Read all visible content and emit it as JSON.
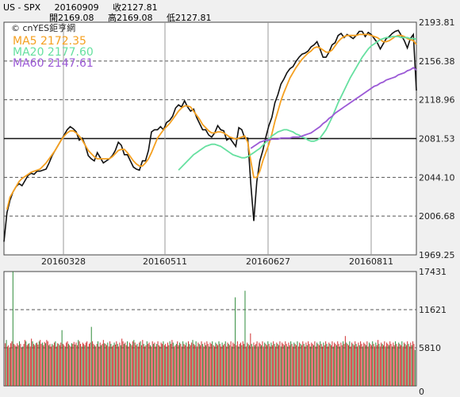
{
  "header": {
    "symbol": "US - SPX",
    "date": "20160909",
    "close": "收2127.81",
    "open": "開2169.08",
    "high": "高2169.08",
    "low": "低2127.81"
  },
  "brand": "© cnYES鉅亨網",
  "legend": [
    {
      "label": "MA5 2172.35",
      "color": "#f5a020"
    },
    {
      "label": "MA20 2177.60",
      "color": "#66e0a0"
    },
    {
      "label": "MA60 2147.61",
      "color": "#9b59d6"
    }
  ],
  "chart_data": [
    {
      "type": "line",
      "title": "",
      "x_ticks": [
        "20160328",
        "20160511",
        "20160627",
        "20160811"
      ],
      "y_ticks": [
        "2193.81",
        "2156.38",
        "2118.96",
        "2081.53",
        "2044.10",
        "2006.68",
        "1969.25"
      ],
      "ylim": [
        1969.25,
        2193.81
      ],
      "reference_line": 2081.53,
      "series": [
        {
          "name": "SPX",
          "color": "#111111",
          "values": [
            1982,
            2010,
            2022,
            2030,
            2035,
            2038,
            2036,
            2041,
            2046,
            2048,
            2047,
            2050,
            2050,
            2051,
            2052,
            2058,
            2065,
            2070,
            2075,
            2080,
            2085,
            2090,
            2093,
            2091,
            2088,
            2080,
            2082,
            2075,
            2065,
            2062,
            2060,
            2068,
            2063,
            2058,
            2060,
            2062,
            2065,
            2070,
            2078,
            2075,
            2066,
            2066,
            2060,
            2054,
            2052,
            2051,
            2060,
            2060,
            2070,
            2088,
            2090,
            2090,
            2093,
            2090,
            2097,
            2099,
            2103,
            2111,
            2114,
            2112,
            2118,
            2112,
            2108,
            2110,
            2102,
            2096,
            2090,
            2090,
            2085,
            2083,
            2087,
            2094,
            2090,
            2089,
            2080,
            2082,
            2078,
            2074,
            2092,
            2090,
            2082,
            2082,
            2038,
            2002,
            2040,
            2060,
            2070,
            2083,
            2094,
            2102,
            2116,
            2124,
            2134,
            2139,
            2145,
            2149,
            2151,
            2156,
            2160,
            2163,
            2164,
            2166,
            2170,
            2172,
            2175,
            2168,
            2160,
            2160,
            2165,
            2172,
            2174,
            2181,
            2183,
            2179,
            2182,
            2180,
            2178,
            2181,
            2185,
            2185,
            2180,
            2184,
            2182,
            2178,
            2174,
            2168,
            2173,
            2178,
            2180,
            2183,
            2185,
            2186,
            2181,
            2176,
            2169,
            2178,
            2182,
            2127.81
          ]
        },
        {
          "name": "MA5",
          "color": "#f5a020",
          "values": [
            2013,
            2025,
            2030,
            2035,
            2040,
            2043,
            2045,
            2047,
            2049,
            2050,
            2051,
            2052,
            2055,
            2058,
            2062,
            2066,
            2070,
            2075,
            2080,
            2084,
            2087,
            2089,
            2089,
            2087,
            2084,
            2080,
            2075,
            2070,
            2067,
            2064,
            2062,
            2062,
            2062,
            2062,
            2062,
            2064,
            2067,
            2070,
            2071,
            2071,
            2068,
            2064,
            2060,
            2057,
            2055,
            2055,
            2058,
            2062,
            2068,
            2075,
            2082,
            2086,
            2090,
            2093,
            2096,
            2100,
            2104,
            2108,
            2111,
            2113,
            2113,
            2112,
            2108,
            2104,
            2100,
            2095,
            2092,
            2089,
            2087,
            2087,
            2088,
            2088,
            2087,
            2085,
            2083,
            2082,
            2081,
            2082,
            2083,
            2084,
            2078,
            2060,
            2044,
            2044,
            2050,
            2060,
            2068,
            2076,
            2086,
            2098,
            2108,
            2118,
            2126,
            2133,
            2140,
            2145,
            2150,
            2154,
            2158,
            2161,
            2164,
            2166,
            2169,
            2170,
            2169,
            2167,
            2165,
            2165,
            2167,
            2171,
            2175,
            2178,
            2180,
            2181,
            2181,
            2181,
            2181,
            2182,
            2182,
            2182,
            2182,
            2181,
            2180,
            2179,
            2177,
            2175,
            2175,
            2176,
            2178,
            2180,
            2181,
            2181,
            2180,
            2178,
            2177,
            2176,
            2172.35
          ]
        },
        {
          "name": "MA20",
          "color": "#66e0a0",
          "values": [
            2051,
            2054,
            2057,
            2060,
            2063,
            2066,
            2068,
            2070,
            2072,
            2074,
            2075,
            2076,
            2076,
            2075,
            2074,
            2072,
            2070,
            2068,
            2066,
            2065,
            2064,
            2063,
            2063,
            2064,
            2066,
            2068,
            2070,
            2072,
            2075,
            2078,
            2081,
            2084,
            2086,
            2088,
            2089,
            2090,
            2090,
            2089,
            2088,
            2086,
            2085,
            2083,
            2082,
            2080,
            2079,
            2079,
            2080,
            2082,
            2086,
            2090,
            2096,
            2102,
            2109,
            2116,
            2122,
            2128,
            2134,
            2140,
            2145,
            2150,
            2155,
            2160,
            2164,
            2168,
            2171,
            2173,
            2175,
            2177,
            2178,
            2179,
            2179,
            2180,
            2180,
            2180,
            2179,
            2179,
            2179,
            2178,
            2178,
            2177.6
          ]
        },
        {
          "name": "MA60",
          "color": "#9b59d6",
          "values": [
            2072,
            2074,
            2076,
            2078,
            2079,
            2080,
            2080,
            2081,
            2081,
            2081,
            2082,
            2082,
            2082,
            2082,
            2083,
            2083,
            2083,
            2084,
            2085,
            2086,
            2087,
            2089,
            2091,
            2093,
            2096,
            2098,
            2101,
            2103,
            2106,
            2108,
            2110,
            2112,
            2114,
            2116,
            2118,
            2120,
            2122,
            2124,
            2126,
            2128,
            2130,
            2132,
            2133,
            2135,
            2136,
            2138,
            2139,
            2140,
            2141,
            2143,
            2144,
            2145,
            2147,
            2148,
            2150,
            2147.61
          ]
        }
      ]
    },
    {
      "type": "bar",
      "title": "",
      "y_ticks": [
        "17431",
        "11621",
        "5810",
        "0"
      ],
      "ylim": [
        0,
        17431
      ],
      "values": [
        6500,
        7000,
        6000,
        6200,
        5800,
        6500,
        6800,
        17431,
        6400,
        6200,
        6000,
        6500,
        6200,
        6800,
        6400,
        5800,
        6000,
        6400,
        7000,
        6800,
        6200,
        6400,
        6500,
        6000,
        7200,
        6800,
        6400,
        6200,
        6500,
        6600,
        6300,
        6800,
        7000,
        6400,
        6600,
        6200,
        6700,
        6500,
        7000,
        6800,
        6200,
        6400,
        6000,
        6400,
        6200,
        6600,
        6800,
        6000,
        6500,
        6400,
        6200,
        6600,
        8500,
        6400,
        6200,
        6000,
        6600,
        6800,
        6400,
        6200,
        6000,
        6500,
        6400,
        6700,
        6300,
        6600,
        6200,
        7000,
        6800,
        6400,
        6000,
        6600,
        6400,
        6200,
        6600,
        6800,
        6000,
        6400,
        6600,
        9000,
        6800,
        6400,
        6200,
        6000,
        6400,
        6800,
        6000,
        6600,
        6200,
        6400,
        7000,
        6500,
        6400,
        6200,
        6600,
        6000,
        6800,
        6400,
        6000,
        6200,
        6600,
        6300,
        6800,
        6400,
        6000,
        6600,
        6200,
        7200,
        6800,
        6400,
        6600,
        6200,
        6800,
        6000,
        6600,
        6400,
        6200,
        6800,
        7000,
        6600,
        6200,
        6400,
        6000,
        6600,
        6800,
        6200,
        7000,
        6400,
        6000,
        6200,
        6800,
        6400,
        6600,
        6200,
        6000,
        6800,
        6400,
        6600,
        6000,
        6400,
        6800,
        6200,
        6000,
        6600,
        6400,
        6800,
        6200,
        6400,
        6000,
        6600,
        6200,
        6800,
        6400,
        7000,
        6600,
        6000,
        6200,
        6400,
        6800,
        6200,
        6600,
        6400,
        6000,
        6800,
        6400,
        6200,
        6600,
        6000,
        6800,
        6400,
        6200,
        6600,
        7000,
        6400,
        6200,
        6800,
        6000,
        6600,
        6400,
        6200,
        6800,
        6400,
        6000,
        6600,
        6200,
        6800,
        6400,
        6000,
        6600,
        6400,
        6800,
        6200,
        6000,
        6600,
        6400,
        6200,
        6800,
        6400,
        6000,
        6600,
        6200,
        6400,
        6800,
        6000,
        6600,
        6400,
        6200,
        6800,
        6000,
        6600,
        6400,
        13500,
        6200,
        6800,
        6000,
        6400,
        6600,
        6200,
        6800,
        6400,
        14500,
        6000,
        6600,
        6400,
        6200,
        8000,
        6400,
        6000,
        6600,
        6200,
        6400,
        6800,
        6000,
        6600,
        6400,
        6200,
        6800,
        6000,
        6600,
        6400,
        6200,
        6800,
        6400,
        6000,
        6600,
        6200,
        6800,
        6400,
        6000,
        6600,
        6400,
        6200,
        6800,
        6000,
        6600,
        6400,
        6200,
        6800,
        6400,
        6000,
        6600,
        6200,
        6800,
        6400,
        6000,
        6600,
        6400,
        6200,
        6800,
        6000,
        6600,
        6400,
        6200,
        6800,
        6400,
        6000,
        6600,
        6200,
        6800,
        6400,
        6000,
        6600,
        6400,
        6200,
        6800,
        6000,
        6600,
        6400,
        6200,
        6800,
        6400,
        6000,
        6600,
        6200,
        6800,
        6400,
        6000,
        6600,
        6400,
        6200,
        6800,
        6000,
        6600,
        6400,
        6200,
        6800,
        6400,
        6000,
        6600,
        6200,
        6800,
        6400,
        7600,
        6600,
        6400,
        6200,
        6800,
        6000,
        6600,
        6400,
        6200,
        6800,
        6400,
        6000,
        6600,
        6200,
        6800,
        6400,
        6000,
        6600,
        6400,
        6200,
        6800,
        6000,
        6600,
        6400,
        6200,
        6800,
        6400,
        6000,
        6600,
        6200,
        7000,
        6400,
        6000,
        6600,
        6400,
        6200,
        6800,
        6000,
        6600,
        6400,
        6200,
        6800,
        6400,
        6000,
        6600,
        6200,
        6800,
        6400,
        6000,
        6600,
        6400,
        6200,
        6800,
        6000,
        6600,
        6400,
        6200,
        6800,
        6400,
        6000,
        6600,
        6200,
        6800,
        6400,
        5500
      ]
    }
  ]
}
